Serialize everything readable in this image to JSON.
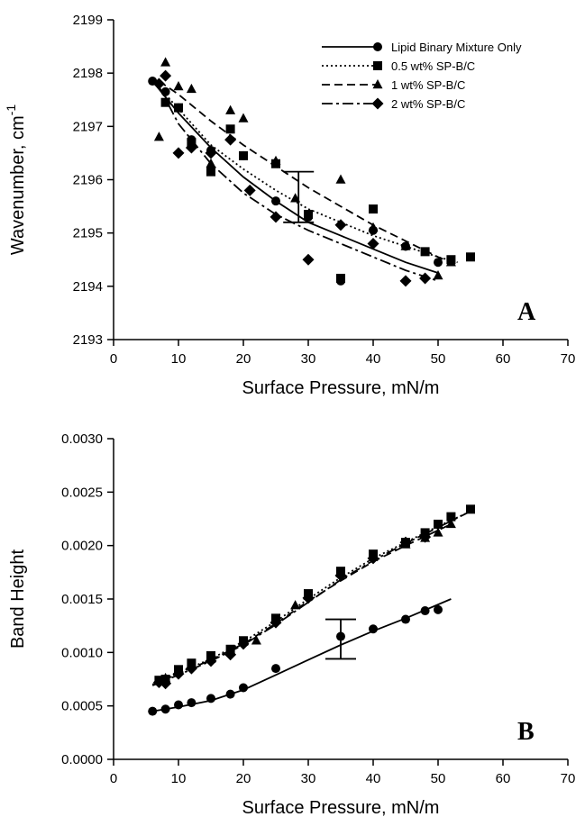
{
  "chart_data": [
    {
      "type": "scatter",
      "panel": "A",
      "xlabel": "Surface Pressure, mN/m",
      "ylabel": "Wavenumber, cm",
      "ylabel_sup": "-1",
      "xlim": [
        0,
        70
      ],
      "ylim": [
        2193,
        2199
      ],
      "xticks": [
        "0",
        "10",
        "20",
        "30",
        "40",
        "50",
        "60",
        "70"
      ],
      "yticks": [
        "2193",
        "2194",
        "2195",
        "2196",
        "2197",
        "2198",
        "2199"
      ],
      "grid": false,
      "legend_position": "top-right",
      "series": [
        {
          "name": "Lipid Binary Mixture Only",
          "marker": "circle",
          "line": "solid",
          "x": [
            6,
            8,
            10,
            12,
            15,
            20,
            25,
            30,
            35,
            40,
            45,
            50
          ],
          "y": [
            2197.85,
            2197.65,
            2197.35,
            2196.75,
            2196.55,
            2196.45,
            2195.6,
            2195.3,
            2194.1,
            2195.05,
            2194.75,
            2194.45
          ],
          "fit_x": [
            6,
            10,
            15,
            20,
            25,
            30,
            35,
            40,
            45,
            50
          ],
          "fit_y": [
            2197.85,
            2197.25,
            2196.6,
            2196.05,
            2195.6,
            2195.2,
            2194.95,
            2194.7,
            2194.45,
            2194.25
          ]
        },
        {
          "name": "0.5 wt% SP-B/C",
          "marker": "square",
          "line": "dotted",
          "x": [
            8,
            10,
            12,
            15,
            18,
            20,
            25,
            30,
            35,
            40,
            48,
            52,
            55
          ],
          "y": [
            2197.45,
            2197.35,
            2196.7,
            2196.15,
            2196.95,
            2196.45,
            2196.3,
            2195.35,
            2194.15,
            2195.45,
            2194.65,
            2194.5,
            2194.55
          ],
          "fit_x": [
            8,
            15,
            20,
            25,
            30,
            35,
            40,
            45,
            50,
            53
          ],
          "fit_y": [
            2197.6,
            2196.65,
            2196.2,
            2195.8,
            2195.45,
            2195.2,
            2194.95,
            2194.75,
            2194.55,
            2194.45
          ]
        },
        {
          "name": "1 wt% SP-B/C",
          "marker": "triangle",
          "line": "dashed",
          "x": [
            7,
            8,
            10,
            12,
            15,
            18,
            20,
            25,
            28,
            35,
            40,
            45,
            50,
            52
          ],
          "y": [
            2196.8,
            2198.2,
            2197.75,
            2197.7,
            2196.3,
            2197.3,
            2197.15,
            2196.35,
            2195.65,
            2196.0,
            2195.1,
            2194.75,
            2194.2,
            2194.45
          ],
          "fit_x": [
            7,
            10,
            15,
            20,
            25,
            30,
            35,
            40,
            45,
            50,
            53
          ],
          "fit_y": [
            2197.85,
            2197.6,
            2197.1,
            2196.65,
            2196.25,
            2195.85,
            2195.5,
            2195.15,
            2194.85,
            2194.55,
            2194.4
          ]
        },
        {
          "name": "2 wt% SP-B/C",
          "marker": "diamond",
          "line": "dashdot",
          "x": [
            7,
            8,
            10,
            12,
            15,
            18,
            21,
            25,
            30,
            35,
            40,
            45,
            48
          ],
          "y": [
            2197.8,
            2197.95,
            2196.5,
            2196.6,
            2196.5,
            2196.75,
            2195.8,
            2195.3,
            2194.5,
            2195.15,
            2194.8,
            2194.1,
            2194.15
          ],
          "fit_x": [
            7,
            10,
            15,
            20,
            25,
            30,
            35,
            40,
            45,
            50
          ],
          "fit_y": [
            2197.75,
            2197.05,
            2196.3,
            2195.75,
            2195.35,
            2195.05,
            2194.8,
            2194.55,
            2194.3,
            2194.1
          ]
        }
      ],
      "error_bar": {
        "x": 28.5,
        "y_low": 2195.2,
        "y_high": 2196.15
      }
    },
    {
      "type": "scatter",
      "panel": "B",
      "xlabel": "Surface Pressure, mN/m",
      "ylabel": "Band Height",
      "xlim": [
        0,
        70
      ],
      "ylim": [
        0,
        0.003
      ],
      "xticks": [
        "0",
        "10",
        "20",
        "30",
        "40",
        "50",
        "60",
        "70"
      ],
      "yticks": [
        "0.0000",
        "0.0005",
        "0.0010",
        "0.0015",
        "0.0020",
        "0.0025",
        "0.0030"
      ],
      "grid": false,
      "series": [
        {
          "name": "Lipid Binary Mixture Only",
          "marker": "circle",
          "line": "solid",
          "x": [
            6,
            8,
            10,
            12,
            15,
            18,
            20,
            25,
            35,
            40,
            45,
            48,
            50
          ],
          "y": [
            0.00045,
            0.00047,
            0.00051,
            0.00053,
            0.00057,
            0.00061,
            0.00067,
            0.00085,
            0.00115,
            0.00122,
            0.00131,
            0.00139,
            0.0014
          ],
          "fit_x": [
            6,
            10,
            15,
            20,
            25,
            30,
            35,
            40,
            45,
            52
          ],
          "fit_y": [
            0.00045,
            0.00049,
            0.00055,
            0.00065,
            0.00079,
            0.00093,
            0.00107,
            0.0012,
            0.00132,
            0.0015
          ]
        },
        {
          "name": "0.5 wt% SP-B/C",
          "marker": "square",
          "line": "dotted",
          "x": [
            7,
            8,
            10,
            12,
            15,
            18,
            20,
            25,
            30,
            35,
            40,
            45,
            48,
            50,
            52,
            55
          ],
          "y": [
            0.00074,
            0.00075,
            0.00084,
            0.0009,
            0.00097,
            0.00103,
            0.00111,
            0.00132,
            0.00155,
            0.00176,
            0.00192,
            0.00203,
            0.00212,
            0.0022,
            0.00227,
            0.00234
          ],
          "fit_x": [
            6,
            10,
            15,
            20,
            25,
            30,
            35,
            40,
            45,
            50,
            55
          ],
          "fit_y": [
            0.0007,
            0.00081,
            0.00094,
            0.0011,
            0.00129,
            0.0015,
            0.0017,
            0.00188,
            0.00203,
            0.00218,
            0.00232
          ]
        },
        {
          "name": "1 wt% SP-B/C",
          "marker": "triangle",
          "line": "dashed",
          "x": [
            7,
            8,
            10,
            12,
            15,
            18,
            20,
            22,
            25,
            28,
            30,
            35,
            40,
            45,
            48,
            50,
            52
          ],
          "y": [
            0.00073,
            0.00076,
            0.00083,
            0.00088,
            0.00094,
            0.00101,
            0.0011,
            0.00111,
            0.0013,
            0.00144,
            0.00153,
            0.00174,
            0.00189,
            0.00201,
            0.00207,
            0.00212,
            0.0022
          ],
          "fit_x": [
            6,
            10,
            15,
            20,
            25,
            30,
            35,
            40,
            45,
            52
          ],
          "fit_y": [
            0.0007,
            0.0008,
            0.00093,
            0.00108,
            0.00127,
            0.00148,
            0.00167,
            0.00185,
            0.002,
            0.0022
          ]
        },
        {
          "name": "2 wt% SP-B/C",
          "marker": "diamond",
          "line": "dashdot",
          "x": [
            7,
            8,
            10,
            12,
            15,
            18,
            20,
            25,
            30,
            35,
            40,
            45,
            48
          ],
          "y": [
            0.00072,
            0.00071,
            0.0008,
            0.00085,
            0.00092,
            0.00098,
            0.00108,
            0.00128,
            0.00151,
            0.00172,
            0.00188,
            0.00203,
            0.00208
          ],
          "fit_x": [
            6,
            10,
            15,
            20,
            25,
            30,
            35,
            40,
            45,
            50,
            55
          ],
          "fit_y": [
            0.00069,
            0.00079,
            0.00092,
            0.00107,
            0.00126,
            0.00147,
            0.00168,
            0.00186,
            0.00202,
            0.00217,
            0.00232
          ]
        }
      ],
      "error_bar": {
        "x": 35,
        "y_low": 0.00094,
        "y_high": 0.00131
      }
    }
  ]
}
